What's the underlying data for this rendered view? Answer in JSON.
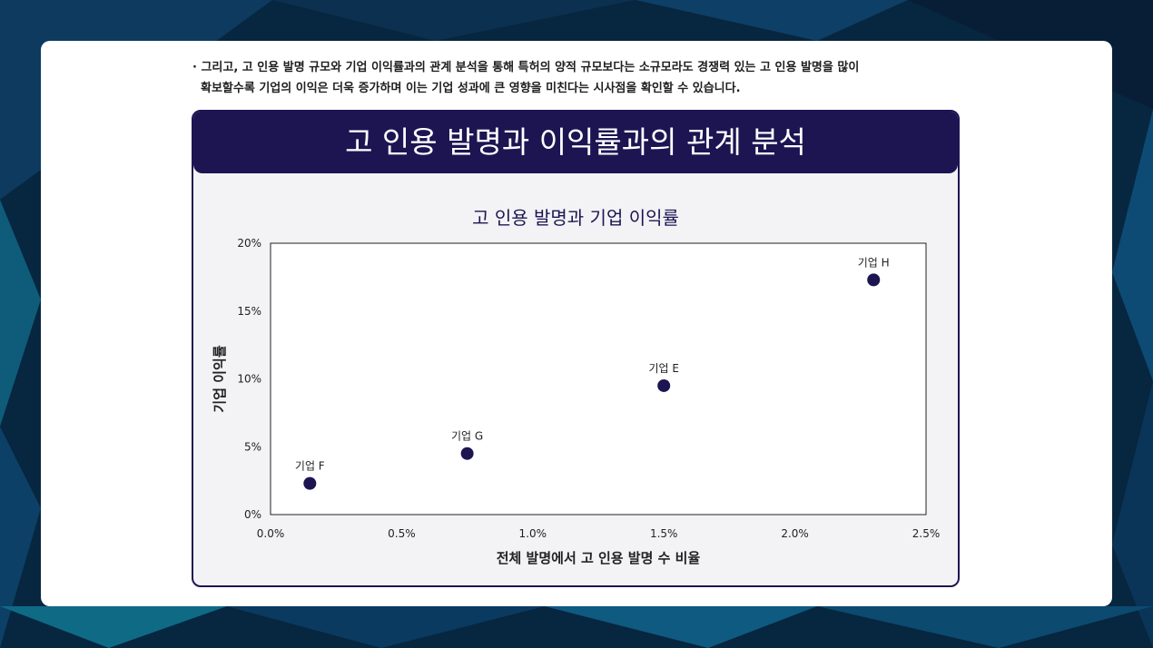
{
  "intro": {
    "line1": "· 그리고, 고 인용 발명 규모와 기업 이익률과의 관계 분석을 통해 특허의 양적 규모보다는 소규모라도 경쟁력 있는 고 인용 발명을 많이",
    "line2": "확보할수록 기업의 이익은 더욱 증가하며 이는 기업 성과에 큰 영향을 미친다는 시사점을 확인할 수 있습니다."
  },
  "panel": {
    "title": "고 인용 발명과 이익률과의 관계 분석"
  },
  "colors": {
    "accent": "#1c1552",
    "panel_bg": "#f3f3f5",
    "point": "#1c1552"
  },
  "chart_data": {
    "type": "scatter",
    "title": "고 인용 발명과 기업 이익률",
    "xlabel": "전체 발명에서 고 인용 발명 수 비율",
    "ylabel": "기업 이익률",
    "xlim": [
      0,
      2.5
    ],
    "ylim": [
      0,
      20
    ],
    "x_ticks": [
      0,
      0.5,
      1.0,
      1.5,
      2.0,
      2.5
    ],
    "x_tick_labels": [
      "0.0%",
      "0.5%",
      "1.0%",
      "1.5%",
      "2.0%",
      "2.5%"
    ],
    "y_ticks": [
      0,
      5,
      10,
      15,
      20
    ],
    "y_tick_labels": [
      "0%",
      "5%",
      "10%",
      "15%",
      "20%"
    ],
    "grid": false,
    "points": [
      {
        "label": "기업 F",
        "x": 0.15,
        "y": 2.3
      },
      {
        "label": "기업 G",
        "x": 0.75,
        "y": 4.5
      },
      {
        "label": "기업 E",
        "x": 1.5,
        "y": 9.5
      },
      {
        "label": "기업 H",
        "x": 2.3,
        "y": 17.3
      }
    ]
  }
}
